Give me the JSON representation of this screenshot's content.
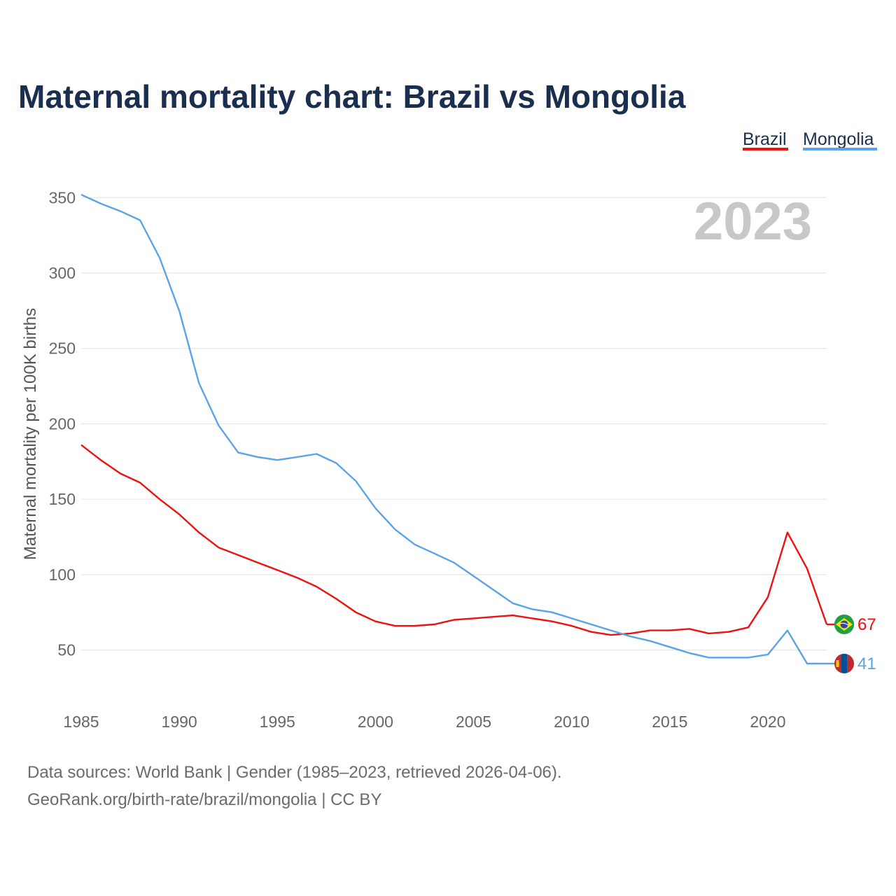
{
  "title": "Maternal mortality chart: Brazil vs Mongolia",
  "legend": [
    {
      "name": "Brazil",
      "color": "#ee1111"
    },
    {
      "name": "Mongolia",
      "color": "#5ba3e6"
    }
  ],
  "current_year": "2023",
  "footer": {
    "line1": "Data sources: World Bank | Gender (1985–2023, retrieved 2026-04-06).",
    "line2": "GeoRank.org/birth-rate/brazil/mongolia | CC BY"
  },
  "chart_data": {
    "type": "line",
    "ylabel": "Maternal mortality per 100K births",
    "xlabel": "",
    "x": [
      1985,
      1986,
      1987,
      1988,
      1989,
      1990,
      1991,
      1992,
      1993,
      1994,
      1995,
      1996,
      1997,
      1998,
      1999,
      2000,
      2001,
      2002,
      2003,
      2004,
      2005,
      2006,
      2007,
      2008,
      2009,
      2010,
      2011,
      2012,
      2013,
      2014,
      2015,
      2016,
      2017,
      2018,
      2019,
      2020,
      2021,
      2022,
      2023
    ],
    "xticks": [
      1985,
      1990,
      1995,
      2000,
      2005,
      2010,
      2015,
      2020
    ],
    "yticks": [
      50,
      100,
      150,
      200,
      250,
      300,
      350
    ],
    "xlim": [
      1985,
      2023
    ],
    "ylim": [
      15,
      365
    ],
    "grid": true,
    "series": [
      {
        "name": "Brazil",
        "color": "#ee1111",
        "end_label": "67",
        "values": [
          186,
          176,
          167,
          161,
          150,
          140,
          128,
          118,
          113,
          108,
          103,
          98,
          92,
          84,
          75,
          69,
          66,
          66,
          67,
          70,
          71,
          72,
          73,
          71,
          69,
          66,
          62,
          60,
          61,
          63,
          63,
          64,
          61,
          62,
          65,
          85,
          128,
          104,
          67
        ]
      },
      {
        "name": "Mongolia",
        "color": "#5ba3e6",
        "end_label": "41",
        "values": [
          352,
          346,
          341,
          335,
          310,
          275,
          227,
          199,
          181,
          178,
          176,
          178,
          180,
          174,
          162,
          144,
          130,
          120,
          114,
          108,
          99,
          90,
          81,
          77,
          75,
          71,
          67,
          63,
          59,
          56,
          52,
          48,
          45,
          45,
          45,
          47,
          63,
          41,
          41
        ]
      }
    ]
  }
}
